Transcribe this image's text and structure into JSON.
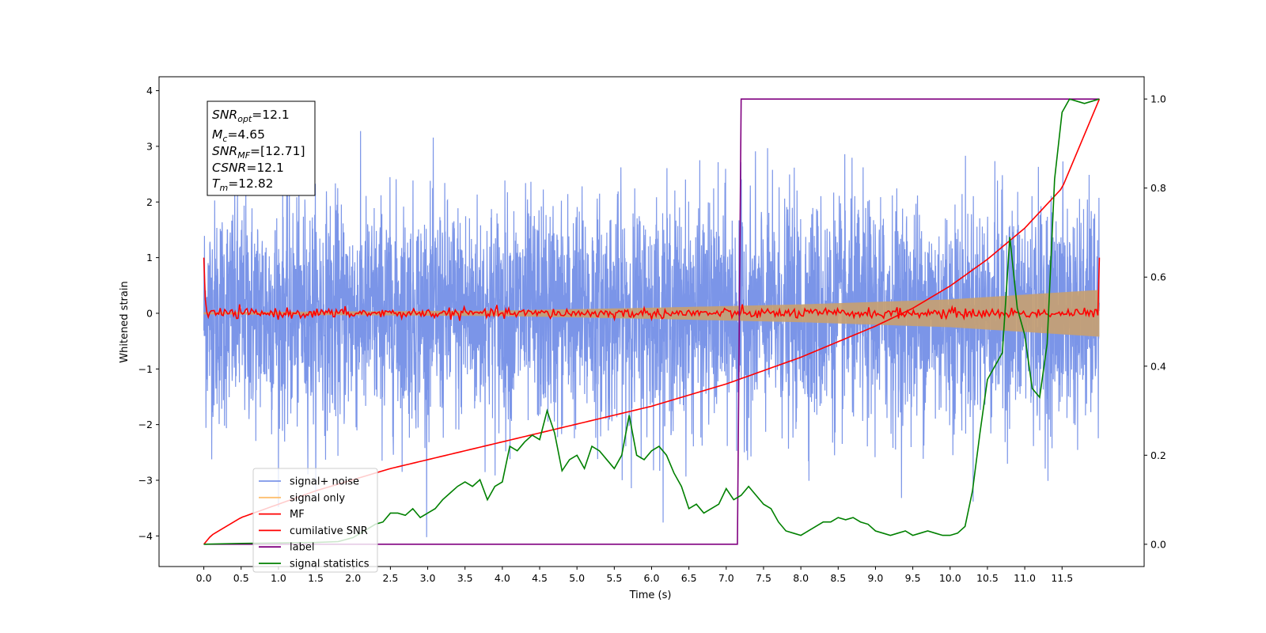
{
  "chart_data": {
    "type": "line",
    "title": "",
    "xlabel": "Time (s)",
    "ylabel": "Whitened strain",
    "y2label": "",
    "xlim": [
      -0.6,
      12.6
    ],
    "ylim": [
      -4.55,
      4.25
    ],
    "y2lim": [
      -0.05,
      1.05
    ],
    "x_ticks": [
      "0.0",
      "0.5",
      "1.0",
      "1.5",
      "2.0",
      "2.5",
      "3.0",
      "3.5",
      "4.0",
      "4.5",
      "5.0",
      "5.5",
      "6.0",
      "6.5",
      "7.0",
      "7.5",
      "8.0",
      "8.5",
      "9.0",
      "9.5",
      "10.0",
      "10.5",
      "11.0",
      "11.5"
    ],
    "y_ticks": [
      "4",
      "3",
      "2",
      "1",
      "0",
      "−1",
      "−2",
      "−3",
      "−4"
    ],
    "y2_ticks": [
      "1.0",
      "0.8",
      "0.6",
      "0.4",
      "0.2",
      "0.0"
    ],
    "grid": false,
    "legend_position": "bottom-left",
    "annotation": {
      "snr_opt": "=12.1",
      "mc": "=4.65",
      "snr_mf": "=[12.71]",
      "csnr": "=12.1",
      "tm": "=12.82"
    },
    "series": [
      {
        "name": "signal+ noise",
        "color": "#7b95e8",
        "axis": "left",
        "description_values": {
          "x_range": [
            0.0,
            12.0
          ],
          "center": 0.0,
          "typical_range": [
            -2.0,
            2.0
          ],
          "extremes": [
            -4.15,
            3.85
          ]
        }
      },
      {
        "name": "signal only",
        "color": "#fdbf6f",
        "axis": "left",
        "envelope": {
          "x": [
            0.0,
            4.0,
            6.0,
            8.0,
            10.0,
            12.0
          ],
          "amplitude": [
            0.02,
            0.05,
            0.1,
            0.16,
            0.25,
            0.42
          ]
        }
      },
      {
        "name": "MF",
        "color": "#ff0000",
        "axis": "left",
        "description_values": {
          "start_value": 1.0,
          "center": 0.0,
          "typical_range": [
            -0.12,
            0.12
          ],
          "end_value": 1.0
        }
      },
      {
        "name": "cumilative SNR",
        "color": "#ff0000",
        "axis": "right",
        "x": [
          0.0,
          0.1,
          0.5,
          1.0,
          1.5,
          2.0,
          2.5,
          3.0,
          3.5,
          4.0,
          4.5,
          5.0,
          5.5,
          6.0,
          6.5,
          7.0,
          7.5,
          8.0,
          8.5,
          9.0,
          9.5,
          10.0,
          10.5,
          11.0,
          11.5,
          12.0
        ],
        "y": [
          0.0,
          0.02,
          0.06,
          0.09,
          0.12,
          0.145,
          0.17,
          0.19,
          0.21,
          0.23,
          0.25,
          0.27,
          0.29,
          0.31,
          0.335,
          0.36,
          0.39,
          0.42,
          0.455,
          0.49,
          0.53,
          0.58,
          0.64,
          0.71,
          0.8,
          1.0
        ]
      },
      {
        "name": "label",
        "color": "#800080",
        "axis": "right",
        "x": [
          0.0,
          7.15,
          7.2,
          12.0
        ],
        "y": [
          0.0,
          0.0,
          1.0,
          1.0
        ]
      },
      {
        "name": "signal statistics",
        "color": "#008000",
        "axis": "right",
        "x": [
          0.0,
          0.5,
          1.0,
          1.5,
          1.8,
          2.0,
          2.1,
          2.2,
          2.3,
          2.4,
          2.5,
          2.6,
          2.7,
          2.8,
          2.9,
          3.0,
          3.1,
          3.2,
          3.3,
          3.4,
          3.5,
          3.6,
          3.7,
          3.8,
          3.9,
          4.0,
          4.1,
          4.2,
          4.3,
          4.4,
          4.5,
          4.6,
          4.7,
          4.8,
          4.9,
          5.0,
          5.1,
          5.2,
          5.3,
          5.4,
          5.5,
          5.6,
          5.7,
          5.8,
          5.9,
          6.0,
          6.1,
          6.2,
          6.3,
          6.4,
          6.5,
          6.6,
          6.7,
          6.8,
          6.9,
          7.0,
          7.1,
          7.2,
          7.3,
          7.4,
          7.5,
          7.6,
          7.7,
          7.8,
          7.9,
          8.0,
          8.1,
          8.2,
          8.3,
          8.4,
          8.5,
          8.6,
          8.7,
          8.8,
          8.9,
          9.0,
          9.1,
          9.2,
          9.3,
          9.4,
          9.5,
          9.6,
          9.7,
          9.8,
          9.9,
          10.0,
          10.1,
          10.2,
          10.3,
          10.4,
          10.5,
          10.6,
          10.7,
          10.8,
          10.9,
          11.0,
          11.1,
          11.2,
          11.3,
          11.4,
          11.5,
          11.6,
          11.7,
          11.8,
          11.9,
          12.0
        ],
        "y": [
          0.0,
          0.002,
          0.003,
          0.004,
          0.006,
          0.015,
          0.025,
          0.035,
          0.045,
          0.05,
          0.07,
          0.07,
          0.065,
          0.08,
          0.06,
          0.07,
          0.08,
          0.1,
          0.115,
          0.13,
          0.14,
          0.13,
          0.145,
          0.1,
          0.13,
          0.14,
          0.22,
          0.21,
          0.23,
          0.245,
          0.235,
          0.3,
          0.25,
          0.165,
          0.19,
          0.2,
          0.17,
          0.22,
          0.21,
          0.19,
          0.17,
          0.2,
          0.29,
          0.2,
          0.19,
          0.21,
          0.22,
          0.2,
          0.16,
          0.13,
          0.08,
          0.09,
          0.07,
          0.08,
          0.09,
          0.125,
          0.1,
          0.11,
          0.13,
          0.11,
          0.09,
          0.08,
          0.05,
          0.03,
          0.025,
          0.02,
          0.03,
          0.04,
          0.05,
          0.05,
          0.06,
          0.055,
          0.06,
          0.05,
          0.045,
          0.03,
          0.025,
          0.02,
          0.025,
          0.03,
          0.02,
          0.025,
          0.03,
          0.025,
          0.02,
          0.02,
          0.025,
          0.04,
          0.12,
          0.25,
          0.37,
          0.4,
          0.43,
          0.69,
          0.53,
          0.47,
          0.35,
          0.33,
          0.45,
          0.82,
          0.97,
          1.0,
          0.995,
          0.99,
          0.995,
          1.0
        ]
      }
    ]
  }
}
